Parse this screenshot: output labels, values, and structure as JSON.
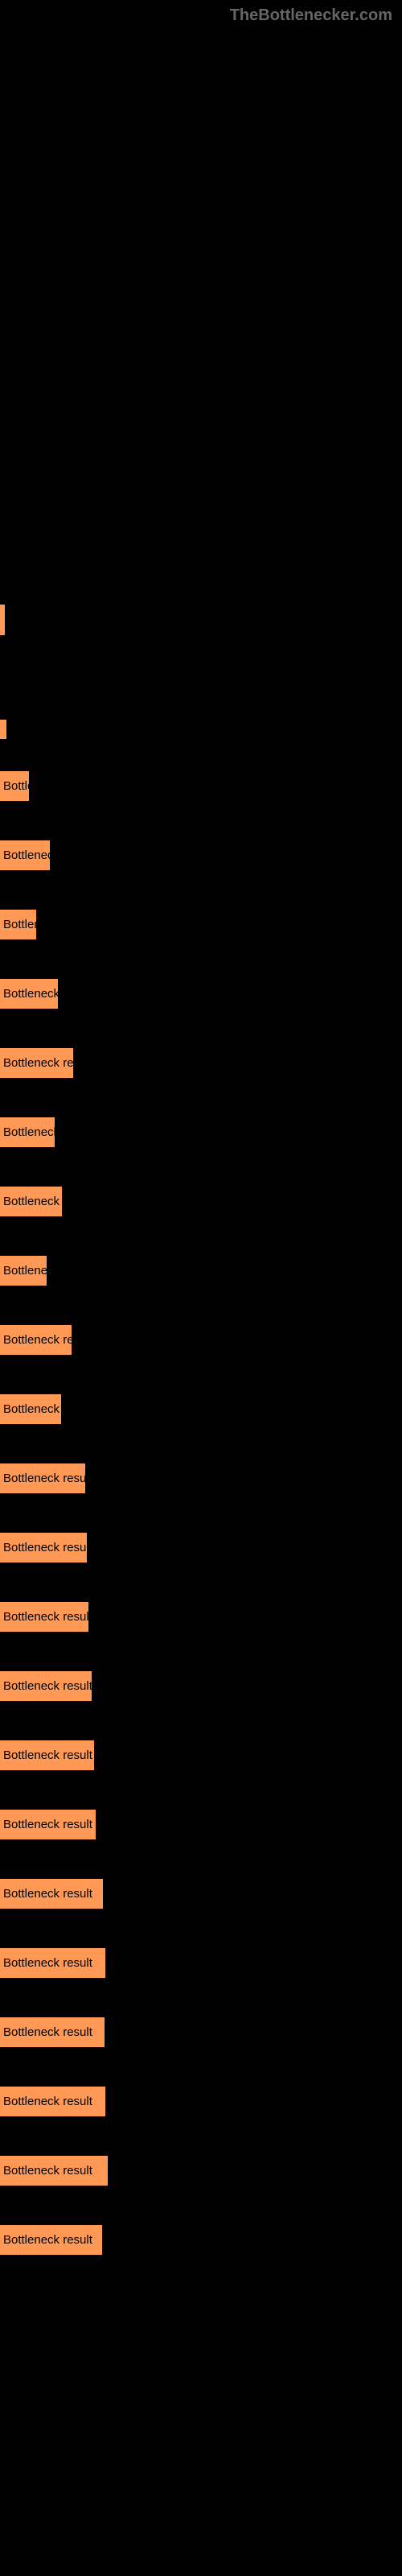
{
  "watermark": "TheBottlenecker.com",
  "bottleneck_bars": [
    {
      "label": "Bottle",
      "width": 36
    },
    {
      "label": "Bottleneck",
      "width": 62
    },
    {
      "label": "Bottlen",
      "width": 45
    },
    {
      "label": "Bottleneck r",
      "width": 72
    },
    {
      "label": "Bottleneck resu",
      "width": 91
    },
    {
      "label": "Bottleneck r",
      "width": 68
    },
    {
      "label": "Bottleneck re",
      "width": 77
    },
    {
      "label": "Bottlenec",
      "width": 58
    },
    {
      "label": "Bottleneck resu",
      "width": 89
    },
    {
      "label": "Bottleneck re",
      "width": 76
    },
    {
      "label": "Bottleneck result",
      "width": 106
    },
    {
      "label": "Bottleneck result",
      "width": 108
    },
    {
      "label": "Bottleneck result",
      "width": 110
    },
    {
      "label": "Bottleneck result",
      "width": 114
    },
    {
      "label": "Bottleneck result",
      "width": 117
    },
    {
      "label": "Bottleneck result",
      "width": 119
    },
    {
      "label": "Bottleneck result",
      "width": 128
    },
    {
      "label": "Bottleneck result",
      "width": 131
    },
    {
      "label": "Bottleneck result",
      "width": 130
    },
    {
      "label": "Bottleneck result",
      "width": 131
    },
    {
      "label": "Bottleneck result",
      "width": 134
    },
    {
      "label": "Bottleneck result",
      "width": 127
    }
  ],
  "bar_color": "#ff9955",
  "background_color": "#000000"
}
